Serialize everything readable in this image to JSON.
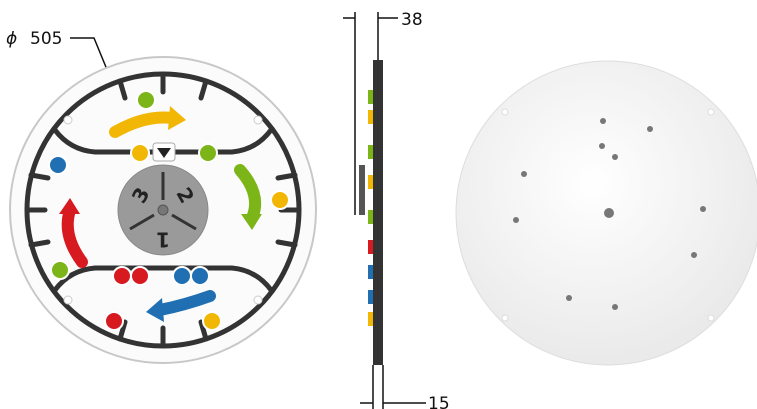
{
  "dimensions": {
    "diameter_symbol": "ϕ",
    "diameter": "505",
    "depth": "38",
    "thickness": "15"
  },
  "dial": {
    "labels": [
      "3",
      "2",
      "1"
    ]
  }
}
